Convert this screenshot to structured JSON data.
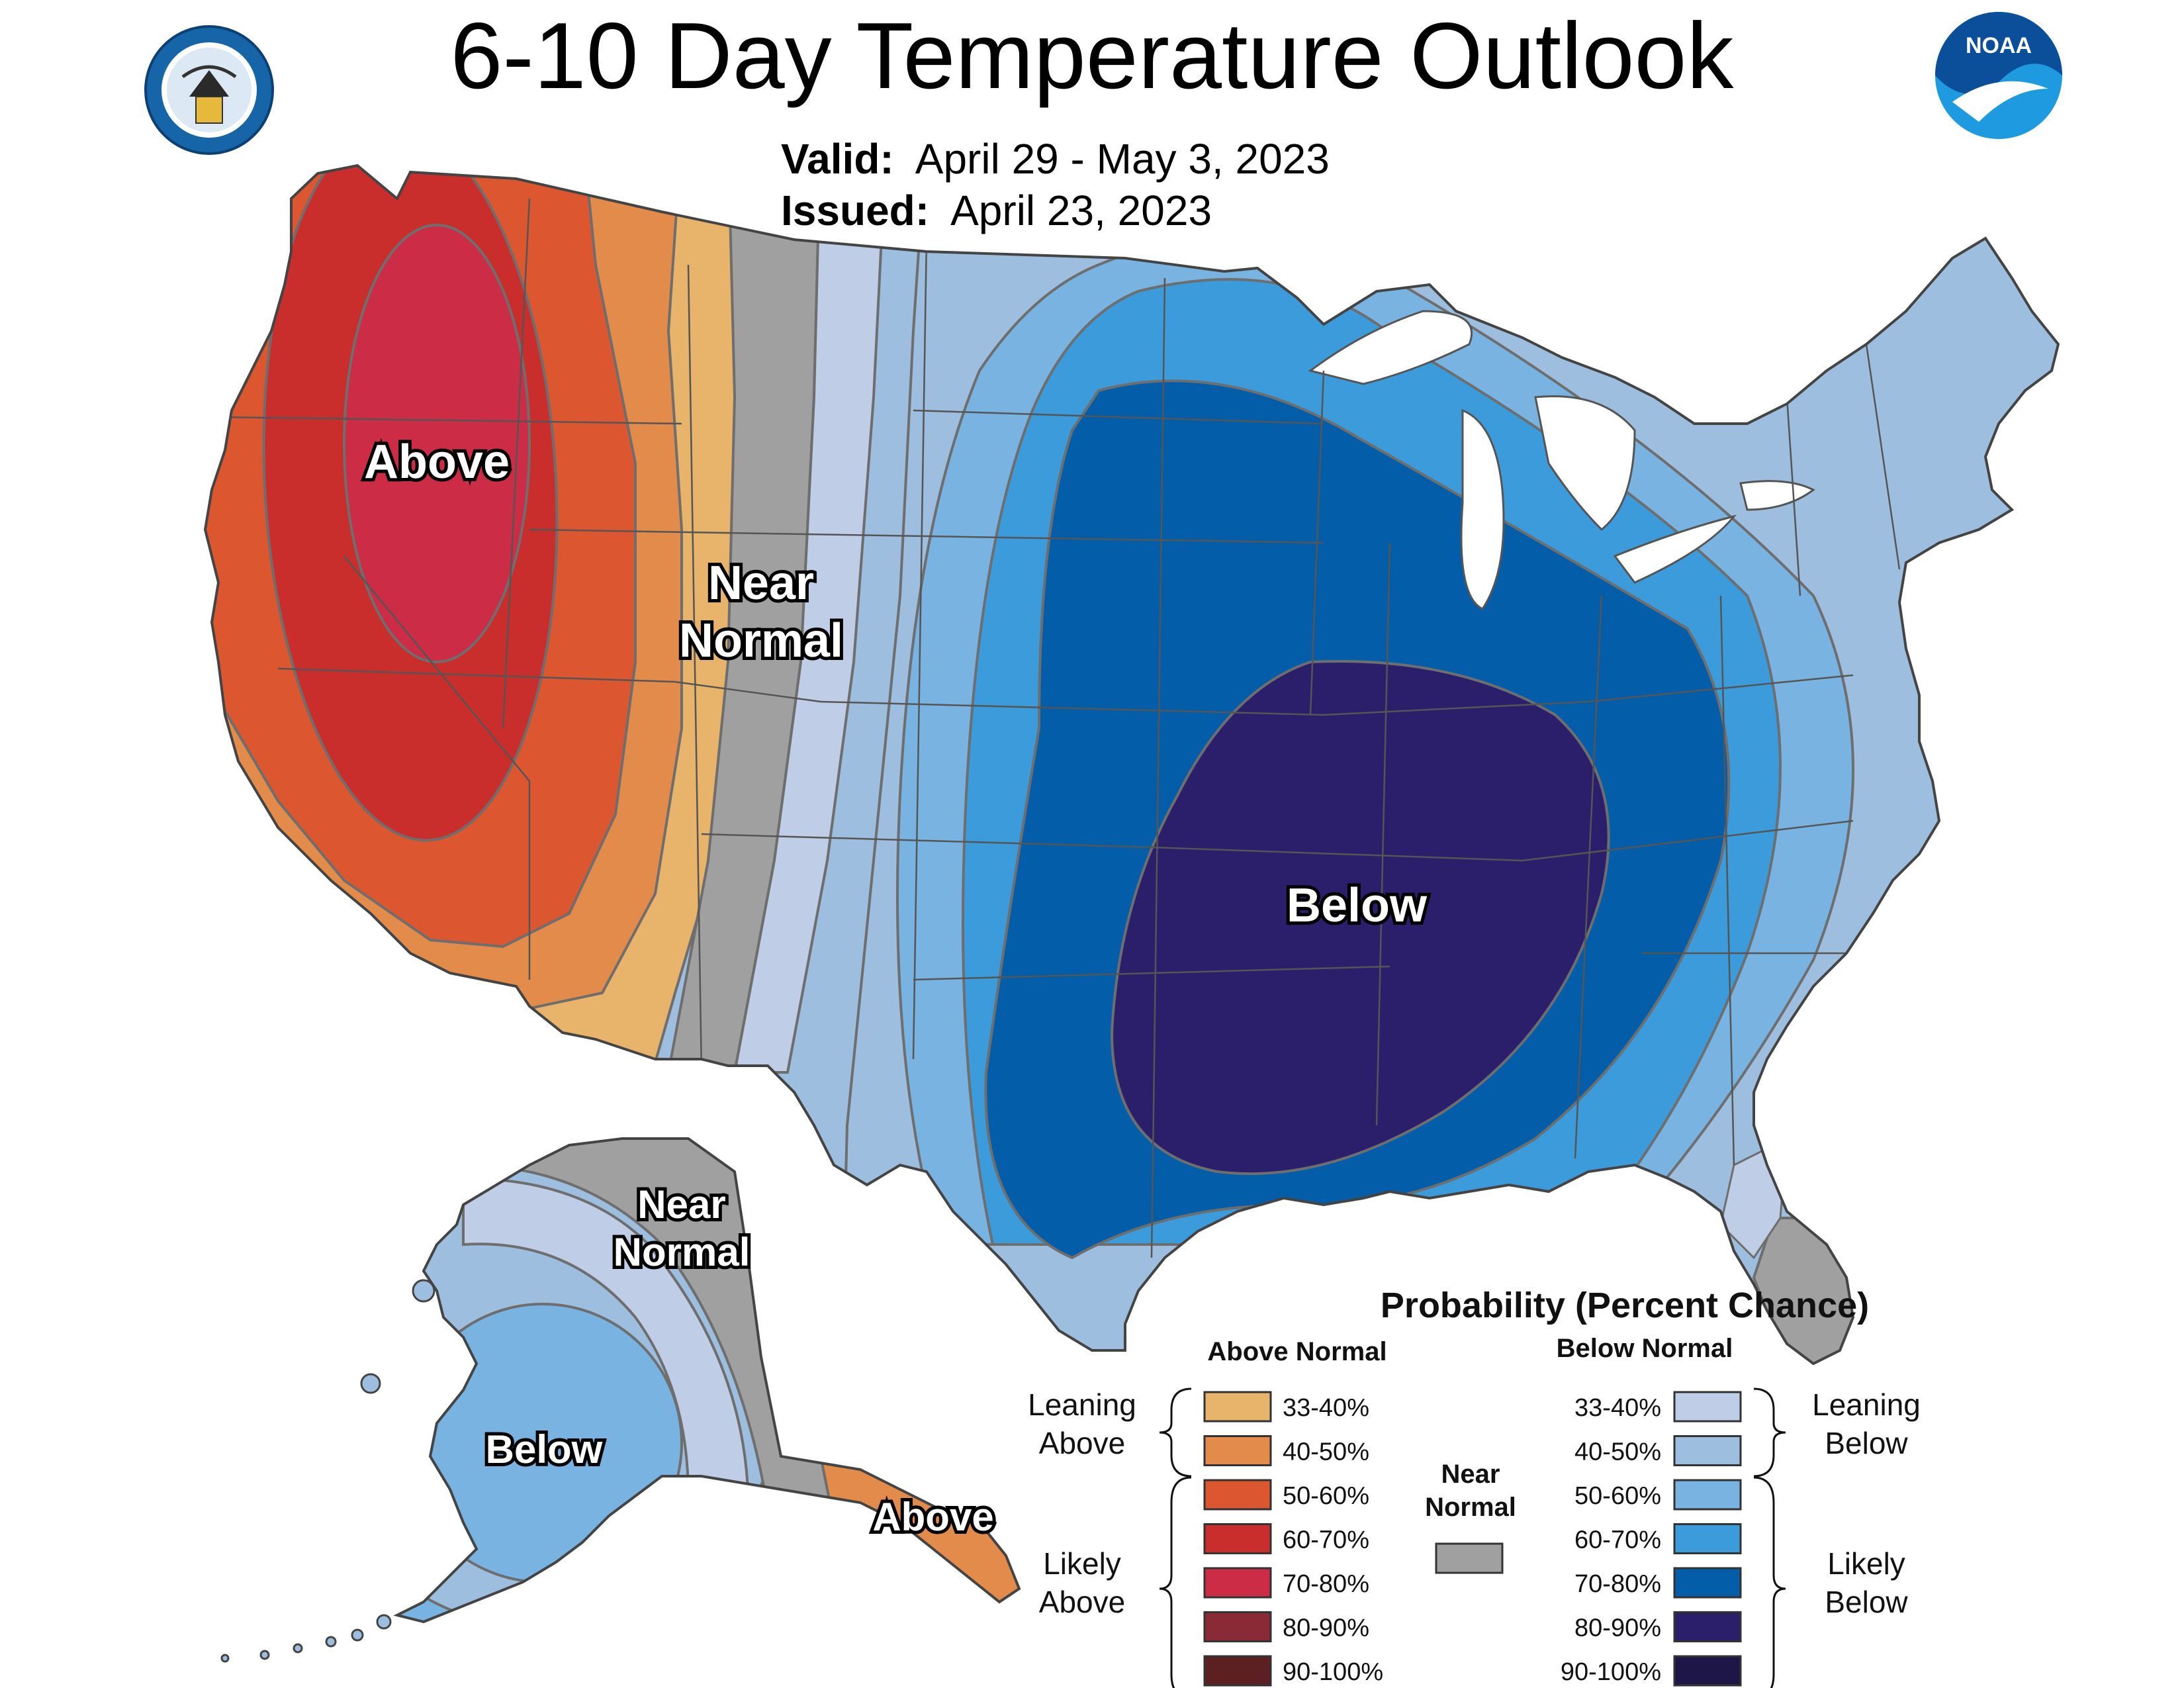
{
  "header": {
    "title": "6-10 Day Temperature Outlook",
    "valid_label": "Valid:",
    "valid_value": "April 29 - May 3, 2023",
    "issued_label": "Issued:",
    "issued_value": "April 23, 2023"
  },
  "logos": {
    "left": "department-of-commerce-seal",
    "right_text": "NOAA",
    "right": "noaa-logo"
  },
  "map_labels": {
    "conus_above": "Above",
    "conus_near_1": "Near",
    "conus_near_2": "Normal",
    "conus_below": "Below",
    "ak_near_1": "Near",
    "ak_near_2": "Normal",
    "ak_below": "Below",
    "ak_above": "Above"
  },
  "legend": {
    "title": "Probability (Percent Chance)",
    "above_header": "Above Normal",
    "below_header": "Below Normal",
    "near_header_1": "Near",
    "near_header_2": "Normal",
    "leaning_above_1": "Leaning",
    "leaning_above_2": "Above",
    "likely_above_1": "Likely",
    "likely_above_2": "Above",
    "leaning_below_1": "Leaning",
    "leaning_below_2": "Below",
    "likely_below_1": "Likely",
    "likely_below_2": "Below",
    "above": [
      {
        "range": "33-40%",
        "color": "#E8B36A"
      },
      {
        "range": "40-50%",
        "color": "#E38B4A"
      },
      {
        "range": "50-60%",
        "color": "#DC5630"
      },
      {
        "range": "60-70%",
        "color": "#C92E2C"
      },
      {
        "range": "70-80%",
        "color": "#CC2C46"
      },
      {
        "range": "80-90%",
        "color": "#8B2A37"
      },
      {
        "range": "90-100%",
        "color": "#5C1F22"
      }
    ],
    "below": [
      {
        "range": "33-40%",
        "color": "#C0CDE6"
      },
      {
        "range": "40-50%",
        "color": "#9EBEE0"
      },
      {
        "range": "50-60%",
        "color": "#78B3E2"
      },
      {
        "range": "60-70%",
        "color": "#3C9BDB"
      },
      {
        "range": "70-80%",
        "color": "#045DA8"
      },
      {
        "range": "80-90%",
        "color": "#2B1F6B"
      },
      {
        "range": "90-100%",
        "color": "#1D1646"
      }
    ],
    "near_color": "#A0A0A0"
  },
  "colors": {
    "state_line": "#555555",
    "contour": "#6E6E6E",
    "water": "#FFFFFF"
  }
}
